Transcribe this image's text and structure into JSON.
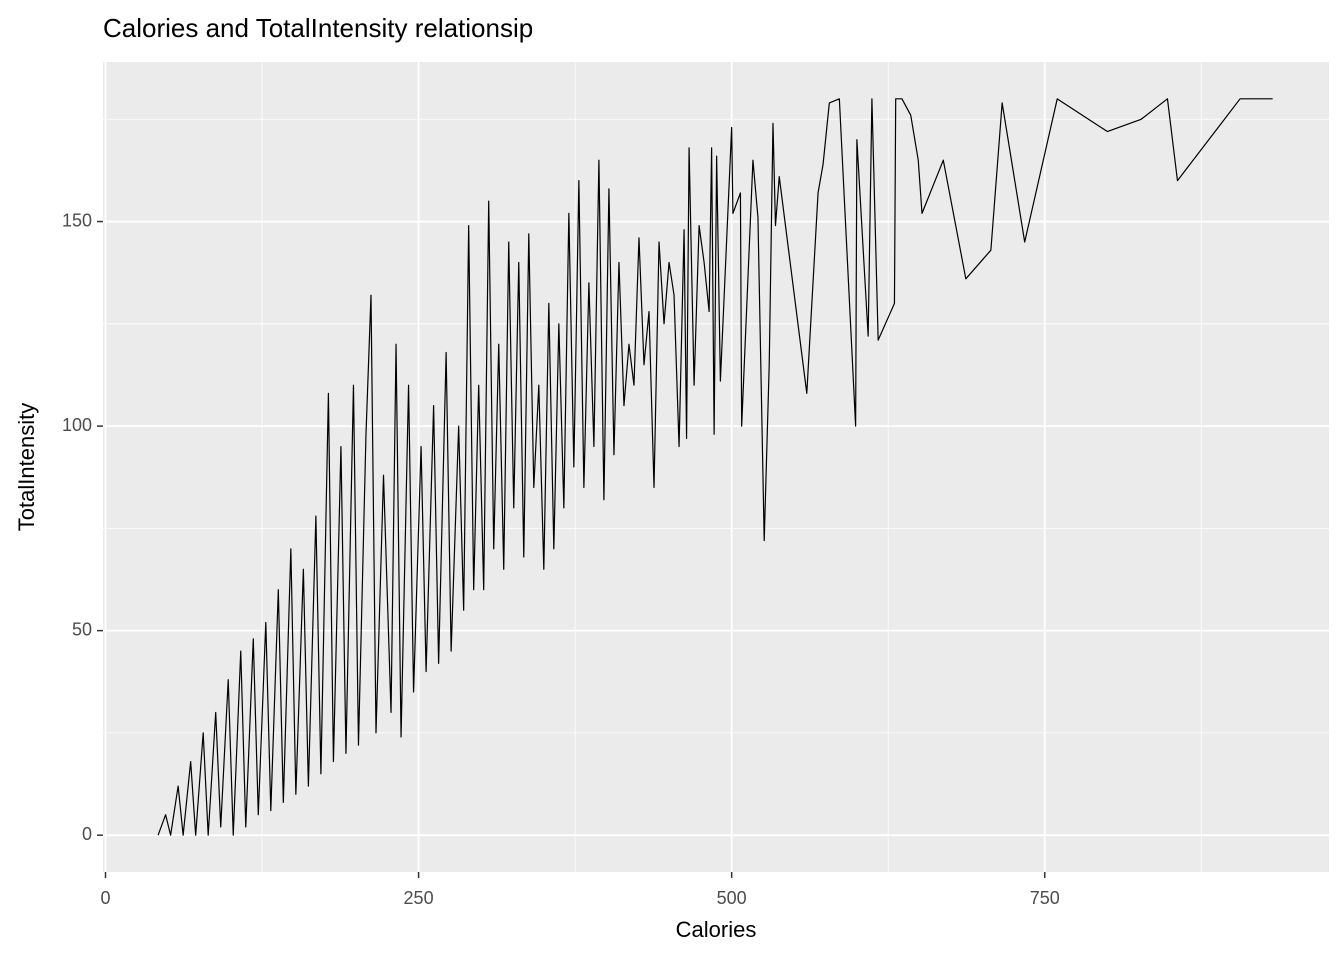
{
  "chart_data": {
    "type": "line",
    "title": "Calories and TotalIntensity relationsip",
    "x_label": "Calories",
    "y_label": "TotalIntensity",
    "xlim": [
      -2,
      977
    ],
    "ylim": [
      -9,
      189
    ],
    "xticks": [
      0,
      250,
      500,
      750
    ],
    "yticks": [
      0,
      50,
      100,
      150
    ],
    "grid": true,
    "minor_grid": true,
    "x": [
      42,
      48,
      52,
      58,
      62,
      68,
      72,
      78,
      82,
      88,
      92,
      98,
      102,
      108,
      112,
      118,
      122,
      128,
      132,
      138,
      142,
      148,
      152,
      158,
      162,
      168,
      172,
      178,
      182,
      188,
      192,
      198,
      202,
      208,
      212,
      216,
      222,
      228,
      232,
      236,
      242,
      246,
      252,
      256,
      262,
      266,
      272,
      276,
      282,
      286,
      290,
      294,
      298,
      302,
      306,
      310,
      314,
      318,
      322,
      326,
      330,
      334,
      338,
      342,
      346,
      350,
      354,
      358,
      362,
      366,
      370,
      374,
      378,
      382,
      386,
      390,
      394,
      398,
      402,
      406,
      410,
      414,
      418,
      422,
      426,
      430,
      434,
      438,
      442,
      446,
      450,
      454,
      458,
      462,
      464,
      466,
      470,
      474,
      478,
      482,
      484,
      486,
      488,
      491,
      500,
      501,
      507,
      508,
      517,
      521,
      526,
      530,
      533,
      535,
      538,
      560,
      569,
      573,
      578,
      586,
      599,
      600,
      609,
      612,
      617,
      630,
      631,
      636,
      643,
      649,
      652,
      669,
      687,
      707,
      716,
      734,
      760,
      800,
      827,
      848,
      856,
      906,
      932
    ],
    "series": [
      {
        "name": "TotalIntensity",
        "color": "#000000",
        "values": [
          0,
          5,
          0,
          12,
          0,
          18,
          0,
          25,
          0,
          30,
          2,
          38,
          0,
          45,
          2,
          48,
          5,
          52,
          6,
          60,
          8,
          70,
          10,
          65,
          12,
          78,
          15,
          108,
          18,
          95,
          20,
          110,
          22,
          98,
          132,
          25,
          88,
          30,
          120,
          24,
          110,
          35,
          95,
          40,
          105,
          42,
          118,
          45,
          100,
          55,
          149,
          60,
          110,
          60,
          155,
          70,
          120,
          65,
          145,
          80,
          140,
          68,
          147,
          85,
          110,
          65,
          130,
          70,
          125,
          80,
          152,
          90,
          160,
          85,
          135,
          95,
          165,
          82,
          158,
          93,
          140,
          105,
          120,
          110,
          146,
          115,
          128,
          85,
          145,
          125,
          140,
          132,
          95,
          148,
          97,
          168,
          110,
          149,
          140,
          128,
          168,
          98,
          166,
          111,
          173,
          152,
          157,
          100,
          165,
          151,
          72,
          115,
          174,
          149,
          161,
          108,
          157,
          164,
          179,
          180,
          100,
          170,
          122,
          180,
          121,
          130,
          180,
          180,
          176,
          165,
          152,
          165,
          136,
          143,
          179,
          145,
          180,
          172,
          175,
          180,
          160,
          180,
          180
        ]
      }
    ]
  }
}
